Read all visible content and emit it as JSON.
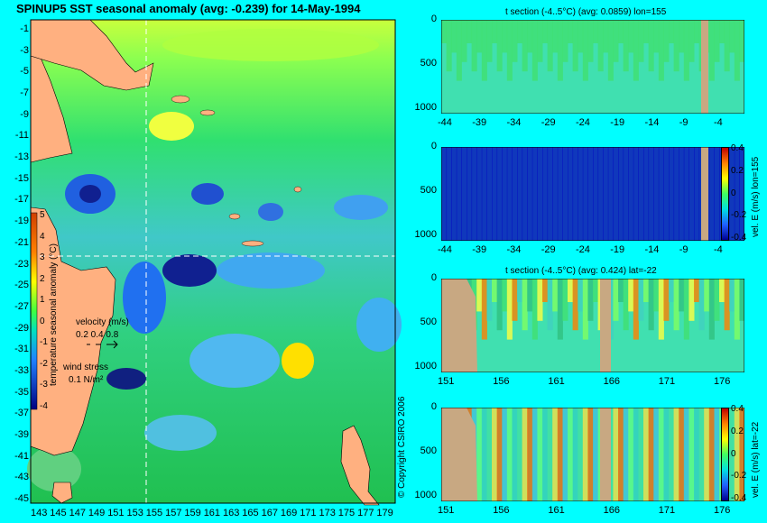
{
  "main_map": {
    "title": "SPINUP5 SST seasonal anomaly (avg: -0.239) for 14-May-1994",
    "lat_ticks": [
      "-1",
      "-3",
      "-5",
      "-7",
      "-9",
      "-11",
      "-13",
      "-15",
      "-17",
      "-19",
      "-21",
      "-23",
      "-25",
      "-27",
      "-29",
      "-31",
      "-33",
      "-35",
      "-37",
      "-39",
      "-41",
      "-43",
      "-45"
    ],
    "lon_ticks": [
      "143",
      "145",
      "147",
      "149",
      "151",
      "153",
      "155",
      "157",
      "159",
      "161",
      "163",
      "165",
      "167",
      "169",
      "171",
      "173",
      "175",
      "177",
      "179"
    ],
    "colorbar": {
      "ticks": [
        "5",
        "4",
        "3",
        "2",
        "1",
        "0",
        "-1",
        "-2",
        "-3",
        "-4"
      ],
      "label": "temperature seasonal anomaly (°C)"
    },
    "velocity_legend": {
      "title": "velocity (m/s)",
      "values": "0.2 0.4 0.8"
    },
    "wind_legend": {
      "title": "wind stress",
      "value": "0.1 N/m²"
    },
    "crosshair": {
      "lon": 155,
      "lat": -22
    }
  },
  "copyright": "© Copyright CSIRO 2006",
  "panels": [
    {
      "title": "t section (-4..5°C) (avg: 0.0859) lon=155",
      "depth_ticks": [
        "0",
        "500",
        "1000"
      ],
      "x_ticks": [
        "-44",
        "-39",
        "-34",
        "-29",
        "-24",
        "-19",
        "-14",
        "-9",
        "-4"
      ],
      "colorbar_label": ""
    },
    {
      "title": "",
      "depth_ticks": [
        "0",
        "500",
        "1000"
      ],
      "x_ticks": [
        "-44",
        "-39",
        "-34",
        "-29",
        "-24",
        "-19",
        "-14",
        "-9",
        "-4"
      ],
      "colorbar_ticks": [
        "0.4",
        "0.2",
        "0",
        "-0.2",
        "-0.4"
      ],
      "colorbar_label": "vel. E (m/s) lon=155"
    },
    {
      "title": "t section (-4..5°C) (avg: 0.424) lat=-22",
      "depth_ticks": [
        "0",
        "500",
        "1000"
      ],
      "x_ticks": [
        "151",
        "156",
        "161",
        "166",
        "171",
        "176"
      ],
      "colorbar_label": ""
    },
    {
      "title": "",
      "depth_ticks": [
        "0",
        "500",
        "1000"
      ],
      "x_ticks": [
        "151",
        "156",
        "161",
        "166",
        "171",
        "176"
      ],
      "colorbar_ticks": [
        "0.4",
        "0.2",
        "0",
        "-0.2",
        "-0.4"
      ],
      "colorbar_label": "vel. E (m/s) lat=-22"
    }
  ]
}
